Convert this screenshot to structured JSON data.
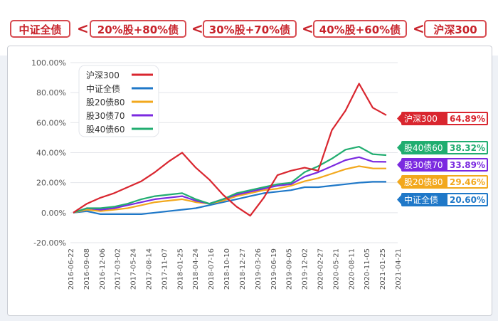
{
  "header": {
    "tabs": [
      {
        "label": "中证全债"
      },
      {
        "label": "20%股+80%债"
      },
      {
        "label": "30%股+70%债"
      },
      {
        "label": "40%股+60%债"
      },
      {
        "label": "沪深300"
      }
    ],
    "separator": "<"
  },
  "chart_data": {
    "type": "line",
    "ylim": [
      -20,
      100
    ],
    "yticks": [
      "-20.00%",
      "0.00%",
      "20.00%",
      "40.00%",
      "60.00%",
      "80.00%",
      "100.00%"
    ],
    "xtick_labels": [
      "2016-06-22",
      "2016-09-08",
      "2016-12-06",
      "2017-03-02",
      "2017-05-24",
      "2017-08-14",
      "2017-11-07",
      "2018-01-25",
      "2018-04-24",
      "2018-07-16",
      "2018-10-10",
      "2018-12-27",
      "2019-03-26",
      "2019-06-19",
      "2019-09-05",
      "2019-12-02",
      "2020-02-27",
      "2020-05-21",
      "2020-08-11",
      "2020-11-05",
      "2021-01-25",
      "2021-04-21"
    ],
    "grid": "horizontal",
    "legend_position": "top-left",
    "series": [
      {
        "name": "沪深300",
        "color": "#d9262f",
        "end_label": "沪深300 64.89%",
        "values": [
          0,
          6,
          10,
          13,
          17,
          21,
          27,
          34,
          40,
          30,
          22,
          12,
          4,
          -2,
          10,
          25,
          28,
          30,
          28,
          55,
          68,
          86,
          70,
          65
        ]
      },
      {
        "name": "中证全债",
        "color": "#1f78c8",
        "end_label": "中证全债 20.60%",
        "values": [
          0,
          1,
          -1,
          -1,
          -1,
          -1,
          0,
          1,
          2,
          3,
          5,
          7,
          9,
          11,
          13,
          14,
          15,
          17,
          17,
          18,
          19,
          20,
          20.6,
          20.6
        ]
      },
      {
        "name": "股20债80",
        "color": "#f2a81d",
        "end_label": "股20债80 29.46%",
        "values": [
          0,
          2,
          1,
          2,
          3,
          5,
          7,
          8,
          9,
          7,
          6,
          8,
          11,
          13,
          15,
          16,
          18,
          21,
          23,
          26,
          29,
          31,
          29.5,
          29.46
        ]
      },
      {
        "name": "股30债70",
        "color": "#7b2ae0",
        "end_label": "股30债70 33.89%",
        "values": [
          0,
          3,
          2,
          3,
          5,
          7,
          9,
          10,
          11,
          8,
          6,
          9,
          12,
          14,
          16,
          18,
          19,
          24,
          27,
          31,
          35,
          37,
          34,
          33.89
        ]
      },
      {
        "name": "股40债60",
        "color": "#21ad70",
        "end_label": "股40债60 38.32%",
        "values": [
          0,
          3,
          3,
          4,
          6,
          9,
          11,
          12,
          13,
          9,
          6,
          9,
          13,
          15,
          17,
          19,
          20,
          27,
          31,
          36,
          42,
          44,
          39,
          38.32
        ]
      }
    ]
  }
}
